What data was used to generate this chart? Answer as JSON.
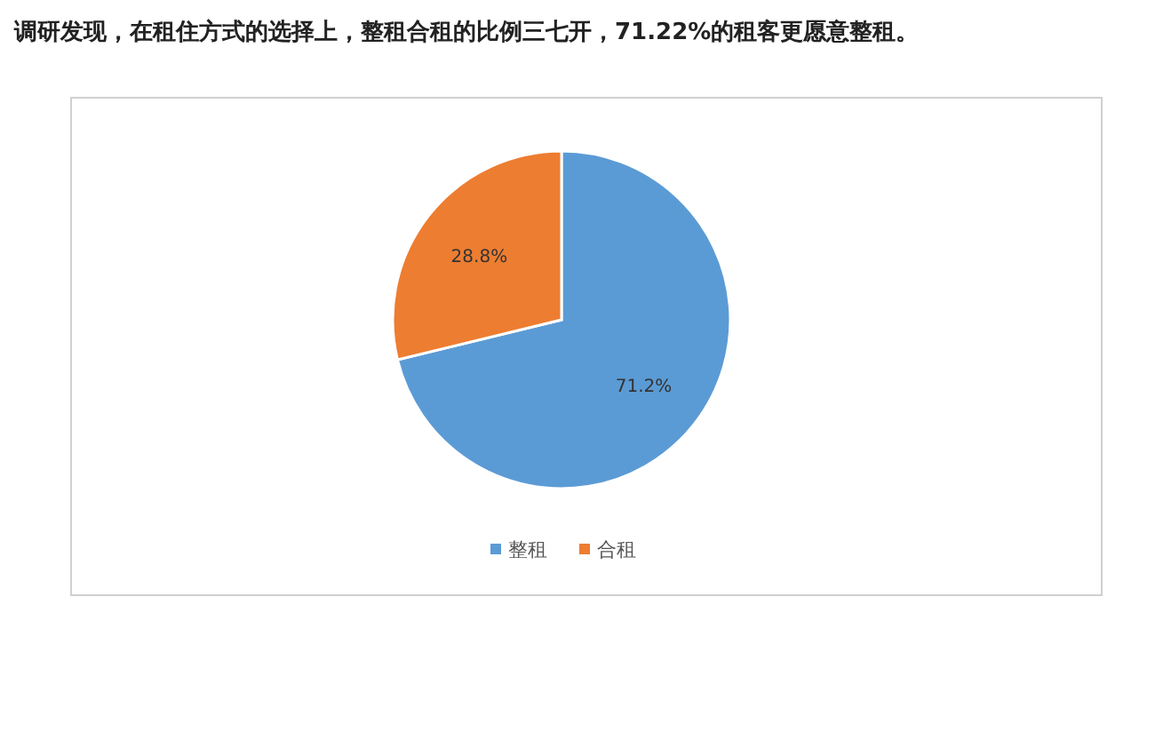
{
  "chart_data": {
    "type": "pie",
    "title": "调研发现，在租住方式的选择上，整租合租的比例三七开，71.22%的租客更愿意整租。",
    "categories": [
      "整租",
      "合租"
    ],
    "values": [
      71.2,
      28.8
    ],
    "colors": [
      "#5b9bd5",
      "#ed7d31"
    ],
    "value_labels": [
      "71.2%",
      "28.8%"
    ],
    "legend": "bottom"
  }
}
